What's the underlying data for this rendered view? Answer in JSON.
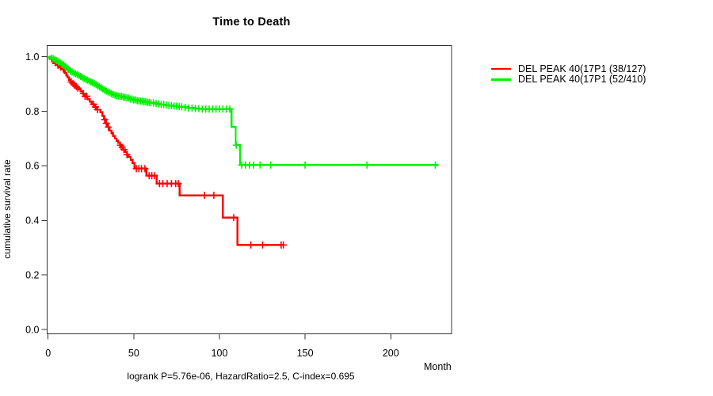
{
  "title": "Time to Death",
  "ylabel": "cumulative survival rate",
  "xlabel": "Month",
  "footnote": "logrank P=5.76e-06, HazardRatio=2.5, C-index=0.695",
  "legend": [
    {
      "label": "DEL PEAK 40(17P1 (38/127)",
      "color": "#ff0000"
    },
    {
      "label": "DEL PEAK 40(17P1 (52/410)",
      "color": "#00f000"
    }
  ],
  "chart_data": {
    "type": "line",
    "subtype": "kaplan-meier-step",
    "title": "Time to Death",
    "xlabel": "Month",
    "ylabel": "cumulative survival rate",
    "xlim": [
      0,
      235
    ],
    "ylim": [
      0,
      1.0
    ],
    "grid": false,
    "legend_position": "right-outside",
    "xticks": [
      {
        "label": "0",
        "value": 0
      },
      {
        "label": "50",
        "value": 50
      },
      {
        "label": "100",
        "value": 100
      },
      {
        "label": "150",
        "value": 150
      },
      {
        "label": "200",
        "value": 200
      }
    ],
    "yticks": [
      {
        "label": "0.0",
        "value": 0.0
      },
      {
        "label": "0.2",
        "value": 0.2
      },
      {
        "label": "0.4",
        "value": 0.4
      },
      {
        "label": "0.6",
        "value": 0.6
      },
      {
        "label": "0.8",
        "value": 0.8
      },
      {
        "label": "1.0",
        "value": 1.0
      }
    ],
    "series": [
      {
        "name": "DEL PEAK 40(17P1 (38/127)",
        "color": "#ff0000",
        "end_month": 137.5,
        "steps": [
          [
            0,
            1.0
          ],
          [
            1,
            0.992
          ],
          [
            2,
            0.984
          ],
          [
            3,
            0.976
          ],
          [
            4.5,
            0.969
          ],
          [
            6,
            0.962
          ],
          [
            7.5,
            0.955
          ],
          [
            9,
            0.948
          ],
          [
            9.8,
            0.94
          ],
          [
            10.6,
            0.932
          ],
          [
            11.4,
            0.924
          ],
          [
            12.2,
            0.916
          ],
          [
            13,
            0.908
          ],
          [
            14,
            0.902
          ],
          [
            15,
            0.896
          ],
          [
            16,
            0.89
          ],
          [
            17,
            0.885
          ],
          [
            18,
            0.88
          ],
          [
            19,
            0.874
          ],
          [
            20.3,
            0.865
          ],
          [
            21.6,
            0.855
          ],
          [
            23,
            0.845
          ],
          [
            24.3,
            0.836
          ],
          [
            25.5,
            0.826
          ],
          [
            27,
            0.816
          ],
          [
            28.5,
            0.806
          ],
          [
            30.5,
            0.797
          ],
          [
            31.6,
            0.783
          ],
          [
            32.7,
            0.77
          ],
          [
            33.8,
            0.756
          ],
          [
            34.9,
            0.742
          ],
          [
            35.9,
            0.729
          ],
          [
            37,
            0.719
          ],
          [
            38,
            0.709
          ],
          [
            39,
            0.7
          ],
          [
            40,
            0.692
          ],
          [
            41,
            0.684
          ],
          [
            42,
            0.676
          ],
          [
            43,
            0.668
          ],
          [
            44,
            0.66
          ],
          [
            45,
            0.651
          ],
          [
            46,
            0.641
          ],
          [
            47,
            0.632
          ],
          [
            48.2,
            0.622
          ],
          [
            49.3,
            0.611
          ],
          [
            50.5,
            0.59
          ],
          [
            57.4,
            0.564
          ],
          [
            63.4,
            0.535
          ],
          [
            76.7,
            0.492
          ],
          [
            102,
            0.41
          ],
          [
            110.6,
            0.31
          ]
        ],
        "censor_months": [
          5.8,
          7.4,
          8.9,
          13.5,
          14.5,
          15.5,
          16.5,
          17.4,
          20.6,
          21.6,
          22.6,
          26.6,
          27.7,
          28.9,
          33,
          34,
          35.2,
          42.2,
          43.2,
          44.2,
          46,
          51.5,
          53,
          54.5,
          56.5,
          59,
          60.5,
          62,
          65,
          67,
          69.5,
          72,
          74.5,
          76,
          91.3,
          96.7,
          108.3,
          118.3,
          125.2,
          136,
          137.3
        ]
      },
      {
        "name": "DEL PEAK 40(17P1 (52/410)",
        "color": "#00f000",
        "end_month": 227.5,
        "steps": [
          [
            0,
            1.0
          ],
          [
            1,
            0.998
          ],
          [
            2,
            0.995
          ],
          [
            3,
            0.993
          ],
          [
            4,
            0.99
          ],
          [
            5,
            0.986
          ],
          [
            6,
            0.982
          ],
          [
            7,
            0.978
          ],
          [
            8,
            0.974
          ],
          [
            9,
            0.97
          ],
          [
            10,
            0.965
          ],
          [
            11,
            0.959
          ],
          [
            12,
            0.953
          ],
          [
            13,
            0.947
          ],
          [
            14,
            0.944
          ],
          [
            15,
            0.941
          ],
          [
            16,
            0.938
          ],
          [
            17,
            0.935
          ],
          [
            18,
            0.932
          ],
          [
            19,
            0.928
          ],
          [
            20,
            0.924
          ],
          [
            21,
            0.92
          ],
          [
            22,
            0.917
          ],
          [
            23,
            0.914
          ],
          [
            24,
            0.911
          ],
          [
            25,
            0.908
          ],
          [
            26,
            0.905
          ],
          [
            27,
            0.901
          ],
          [
            28,
            0.898
          ],
          [
            29,
            0.894
          ],
          [
            30,
            0.89
          ],
          [
            31,
            0.886
          ],
          [
            32,
            0.882
          ],
          [
            33,
            0.878
          ],
          [
            34,
            0.874
          ],
          [
            35,
            0.871
          ],
          [
            36,
            0.868
          ],
          [
            37,
            0.865
          ],
          [
            38,
            0.862
          ],
          [
            39,
            0.859
          ],
          [
            40,
            0.857
          ],
          [
            41,
            0.856
          ],
          [
            42,
            0.855
          ],
          [
            44,
            0.852
          ],
          [
            46,
            0.849
          ],
          [
            48,
            0.845
          ],
          [
            50,
            0.842
          ],
          [
            52,
            0.839
          ],
          [
            54,
            0.837
          ],
          [
            56,
            0.835
          ],
          [
            58,
            0.833
          ],
          [
            60,
            0.831
          ],
          [
            62,
            0.829
          ],
          [
            64,
            0.827
          ],
          [
            66,
            0.825
          ],
          [
            68,
            0.823
          ],
          [
            70,
            0.821
          ],
          [
            73,
            0.819
          ],
          [
            76,
            0.817
          ],
          [
            79,
            0.815
          ],
          [
            82,
            0.812
          ],
          [
            86,
            0.81
          ],
          [
            90,
            0.808
          ],
          [
            107,
            0.743
          ],
          [
            109.5,
            0.676
          ],
          [
            112,
            0.603
          ]
        ],
        "censor_months": [
          2,
          3,
          4,
          5,
          6,
          7,
          8,
          9,
          10,
          11,
          12,
          13,
          14,
          15,
          16,
          17,
          18,
          19,
          20,
          21,
          22,
          23,
          24,
          25,
          26,
          27,
          28,
          29,
          30,
          31,
          32,
          33,
          34,
          35,
          36,
          37,
          38,
          39,
          40,
          41,
          42,
          43,
          44,
          45,
          46,
          47,
          48,
          49,
          50,
          51,
          52,
          53,
          54,
          55,
          56,
          57,
          58,
          59,
          60,
          61.5,
          63,
          64.5,
          66,
          67.5,
          69,
          70.5,
          72,
          73.5,
          75,
          76.5,
          78,
          80,
          82,
          84,
          86,
          88,
          90,
          92,
          94,
          96,
          98,
          100,
          102,
          104,
          106,
          109.8,
          113,
          115.2,
          117.5,
          119.9,
          123.7,
          129.9,
          150,
          186.1,
          226
        ]
      }
    ]
  }
}
